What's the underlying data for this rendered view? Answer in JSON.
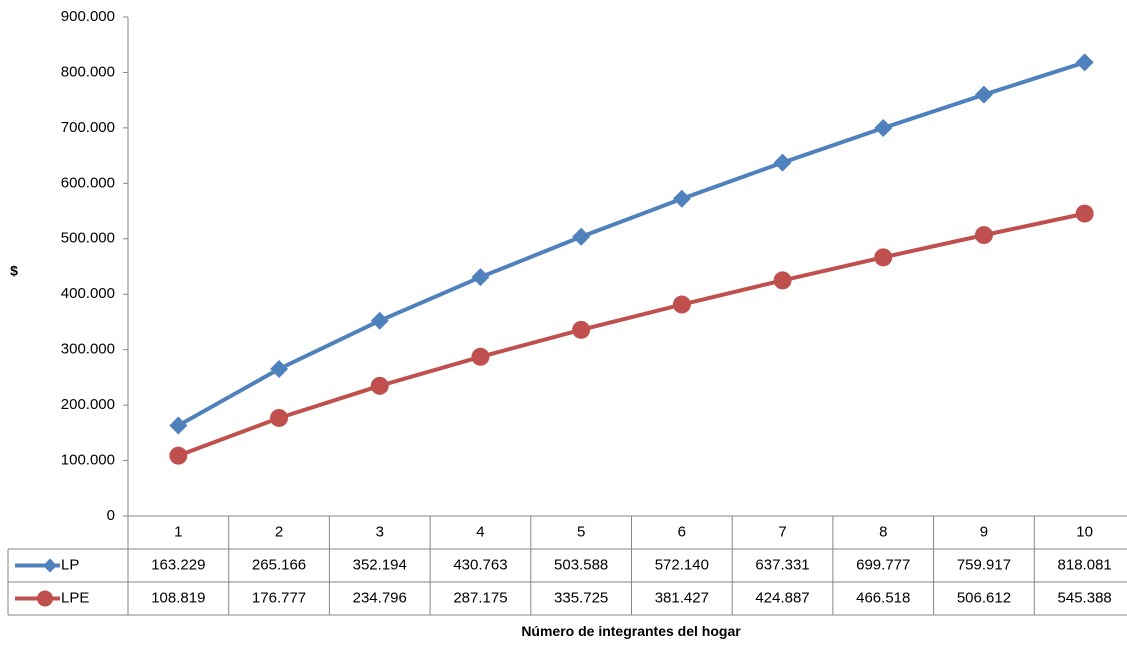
{
  "chart_data": {
    "type": "line",
    "title": "",
    "xlabel": "Número de integrantes del hogar",
    "ylabel": "$",
    "ylim": [
      0,
      900000
    ],
    "yticks": [
      0,
      100000,
      200000,
      300000,
      400000,
      500000,
      600000,
      700000,
      800000,
      900000
    ],
    "ytick_labels": [
      "0",
      "100.000",
      "200.000",
      "300.000",
      "400.000",
      "500.000",
      "600.000",
      "700.000",
      "800.000",
      "900.000"
    ],
    "categories": [
      "1",
      "2",
      "3",
      "4",
      "5",
      "6",
      "7",
      "8",
      "9",
      "10"
    ],
    "series": [
      {
        "name": "LP",
        "color": "#4F81BD",
        "marker": "diamond",
        "values": [
          163229,
          265166,
          352194,
          430763,
          503588,
          572140,
          637331,
          699777,
          759917,
          818081
        ],
        "labels": [
          "163.229",
          "265.166",
          "352.194",
          "430.763",
          "503.588",
          "572.140",
          "637.331",
          "699.777",
          "759.917",
          "818.081"
        ]
      },
      {
        "name": "LPE",
        "color": "#C0504D",
        "marker": "circle",
        "values": [
          108819,
          176777,
          234796,
          287175,
          335725,
          381427,
          424887,
          466518,
          506612,
          545388
        ],
        "labels": [
          "108.819",
          "176.777",
          "234.796",
          "287.175",
          "335.725",
          "381.427",
          "424.887",
          "466.518",
          "506.612",
          "545.388"
        ]
      }
    ],
    "grid": false,
    "legend": "data-table"
  }
}
